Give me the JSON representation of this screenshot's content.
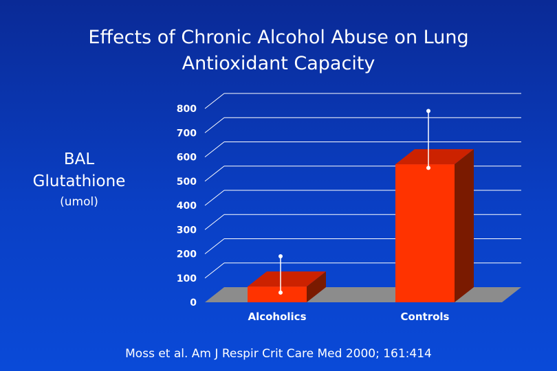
{
  "chart_data": {
    "type": "bar",
    "title_lines": [
      "Effects of Chronic Alcohol Abuse on Lung",
      "Antioxidant Capacity"
    ],
    "ylabel": "BAL Glutathione",
    "yunit": "(umol)",
    "xlabel": "",
    "categories": [
      "Alcoholics",
      "Controls"
    ],
    "values": [
      65,
      570
    ],
    "error_high": [
      190,
      790
    ],
    "error_low": [
      40,
      555
    ],
    "ylim": [
      0,
      800
    ],
    "yticks": [
      "0",
      "100",
      "200",
      "300",
      "400",
      "500",
      "600",
      "700",
      "800"
    ],
    "grid": true,
    "style": "3d",
    "colors": {
      "bar_front": "#ff3300",
      "bar_top": "#cc2200",
      "bar_side": "#7a1a00",
      "floor": "#8c8c8c",
      "gridline": "#ffffff",
      "errorbar": "#ffffff"
    }
  },
  "citation": "Moss et al. Am J Respir Crit Care Med 2000; 161:414"
}
